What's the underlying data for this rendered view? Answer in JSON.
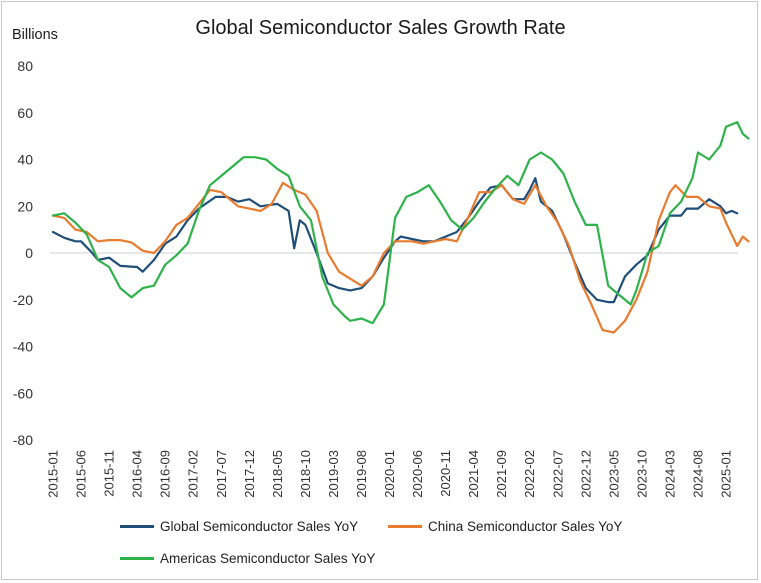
{
  "chart_data": {
    "type": "line",
    "title": "Global Semiconductor Sales Growth Rate",
    "ylabel": "Billions",
    "xlabel": "",
    "ylim": [
      -80,
      80
    ],
    "yticks": [
      80,
      60,
      40,
      20,
      0,
      -20,
      -40,
      -60,
      -80
    ],
    "x_start": "2015-01",
    "x_end": "2025-03",
    "x_tick_labels": [
      "2015-01",
      "2015-06",
      "2015-11",
      "2016-04",
      "2016-09",
      "2017-02",
      "2017-07",
      "2017-12",
      "2018-05",
      "2018-10",
      "2019-03",
      "2019-08",
      "2020-01",
      "2020-06",
      "2020-11",
      "2021-04",
      "2021-09",
      "2022-02",
      "2022-07",
      "2022-12",
      "2023-05",
      "2023-10",
      "2024-03",
      "2024-08",
      "2025-01"
    ],
    "grid": "horizontal zero line",
    "legend_position": "bottom",
    "series": [
      {
        "name": "Global Semiconductor Sales YoY",
        "color": "#1f4e79",
        "points": [
          [
            "2015-01",
            9
          ],
          [
            "2015-03",
            6.5
          ],
          [
            "2015-05",
            5
          ],
          [
            "2015-06",
            5
          ],
          [
            "2015-08",
            0
          ],
          [
            "2015-09",
            -3
          ],
          [
            "2015-11",
            -2
          ],
          [
            "2016-01",
            -5.5
          ],
          [
            "2016-04",
            -6
          ],
          [
            "2016-05",
            -8
          ],
          [
            "2016-07",
            -3
          ],
          [
            "2016-09",
            4
          ],
          [
            "2016-11",
            7
          ],
          [
            "2017-01",
            14
          ],
          [
            "2017-03",
            19
          ],
          [
            "2017-06",
            24
          ],
          [
            "2017-08",
            24
          ],
          [
            "2017-10",
            22
          ],
          [
            "2017-12",
            23
          ],
          [
            "2018-02",
            20
          ],
          [
            "2018-05",
            21
          ],
          [
            "2018-07",
            18
          ],
          [
            "2018-08",
            2
          ],
          [
            "2018-09",
            14
          ],
          [
            "2018-10",
            12
          ],
          [
            "2018-12",
            0
          ],
          [
            "2019-02",
            -13
          ],
          [
            "2019-04",
            -15
          ],
          [
            "2019-06",
            -16
          ],
          [
            "2019-08",
            -15
          ],
          [
            "2019-10",
            -10
          ],
          [
            "2019-12",
            -2
          ],
          [
            "2020-02",
            5
          ],
          [
            "2020-03",
            7
          ],
          [
            "2020-05",
            6
          ],
          [
            "2020-07",
            5
          ],
          [
            "2020-09",
            5
          ],
          [
            "2020-11",
            7
          ],
          [
            "2021-01",
            9
          ],
          [
            "2021-03",
            15
          ],
          [
            "2021-05",
            22
          ],
          [
            "2021-07",
            28
          ],
          [
            "2021-09",
            29
          ],
          [
            "2021-11",
            23
          ],
          [
            "2022-01",
            23
          ],
          [
            "2022-02",
            27
          ],
          [
            "2022-03",
            32
          ],
          [
            "2022-04",
            22
          ],
          [
            "2022-06",
            18
          ],
          [
            "2022-08",
            8
          ],
          [
            "2022-10",
            -4
          ],
          [
            "2022-12",
            -15
          ],
          [
            "2023-02",
            -20
          ],
          [
            "2023-04",
            -21
          ],
          [
            "2023-05",
            -21
          ],
          [
            "2023-07",
            -10
          ],
          [
            "2023-09",
            -5
          ],
          [
            "2023-11",
            -1
          ],
          [
            "2024-01",
            10
          ],
          [
            "2024-03",
            16
          ],
          [
            "2024-05",
            16
          ],
          [
            "2024-06",
            19
          ],
          [
            "2024-08",
            19
          ],
          [
            "2024-10",
            23
          ],
          [
            "2024-12",
            20
          ],
          [
            "2025-01",
            17
          ],
          [
            "2025-02",
            18
          ],
          [
            "2025-03",
            17
          ]
        ]
      },
      {
        "name": "China Semiconductor Sales YoY",
        "color": "#e97b2e",
        "points": [
          [
            "2015-01",
            16
          ],
          [
            "2015-03",
            15
          ],
          [
            "2015-05",
            10
          ],
          [
            "2015-07",
            9
          ],
          [
            "2015-09",
            5
          ],
          [
            "2015-11",
            5.5
          ],
          [
            "2016-01",
            5.5
          ],
          [
            "2016-03",
            4.5
          ],
          [
            "2016-05",
            1
          ],
          [
            "2016-07",
            0
          ],
          [
            "2016-09",
            5
          ],
          [
            "2016-11",
            12
          ],
          [
            "2017-01",
            15
          ],
          [
            "2017-03",
            21
          ],
          [
            "2017-05",
            27
          ],
          [
            "2017-07",
            26
          ],
          [
            "2017-08",
            24
          ],
          [
            "2017-10",
            20
          ],
          [
            "2017-12",
            19
          ],
          [
            "2018-02",
            18
          ],
          [
            "2018-04",
            21
          ],
          [
            "2018-06",
            30
          ],
          [
            "2018-08",
            27
          ],
          [
            "2018-10",
            25
          ],
          [
            "2018-12",
            18
          ],
          [
            "2019-02",
            0
          ],
          [
            "2019-04",
            -8
          ],
          [
            "2019-06",
            -11
          ],
          [
            "2019-08",
            -14
          ],
          [
            "2019-10",
            -10
          ],
          [
            "2019-12",
            0
          ],
          [
            "2020-02",
            5
          ],
          [
            "2020-03",
            5
          ],
          [
            "2020-05",
            5
          ],
          [
            "2020-07",
            4
          ],
          [
            "2020-09",
            5
          ],
          [
            "2020-11",
            6
          ],
          [
            "2021-01",
            5
          ],
          [
            "2021-03",
            15
          ],
          [
            "2021-05",
            26
          ],
          [
            "2021-07",
            26
          ],
          [
            "2021-09",
            29
          ],
          [
            "2021-11",
            23
          ],
          [
            "2022-01",
            21
          ],
          [
            "2022-03",
            29
          ],
          [
            "2022-05",
            20
          ],
          [
            "2022-07",
            13
          ],
          [
            "2022-09",
            3
          ],
          [
            "2022-11",
            -12
          ],
          [
            "2023-01",
            -22
          ],
          [
            "2023-03",
            -33
          ],
          [
            "2023-05",
            -34
          ],
          [
            "2023-07",
            -29
          ],
          [
            "2023-09",
            -20
          ],
          [
            "2023-11",
            -8
          ],
          [
            "2024-01",
            14
          ],
          [
            "2024-03",
            26
          ],
          [
            "2024-04",
            29
          ],
          [
            "2024-06",
            24
          ],
          [
            "2024-08",
            24
          ],
          [
            "2024-10",
            20
          ],
          [
            "2024-12",
            19
          ],
          [
            "2025-01",
            13
          ],
          [
            "2025-02",
            8
          ],
          [
            "2025-03",
            3
          ],
          [
            "2025-04",
            7
          ],
          [
            "2025-05",
            5
          ]
        ]
      },
      {
        "name": "Americas Semiconductor Sales YoY",
        "color": "#2db34a",
        "points": [
          [
            "2015-01",
            16
          ],
          [
            "2015-03",
            17
          ],
          [
            "2015-05",
            13
          ],
          [
            "2015-07",
            8
          ],
          [
            "2015-09",
            -3
          ],
          [
            "2015-11",
            -6
          ],
          [
            "2016-01",
            -15
          ],
          [
            "2016-03",
            -19
          ],
          [
            "2016-05",
            -15
          ],
          [
            "2016-07",
            -14
          ],
          [
            "2016-09",
            -5
          ],
          [
            "2016-11",
            -1
          ],
          [
            "2017-01",
            4
          ],
          [
            "2017-03",
            18
          ],
          [
            "2017-05",
            29
          ],
          [
            "2017-07",
            33
          ],
          [
            "2017-09",
            37
          ],
          [
            "2017-11",
            41
          ],
          [
            "2018-01",
            41
          ],
          [
            "2018-03",
            40
          ],
          [
            "2018-05",
            36
          ],
          [
            "2018-07",
            33
          ],
          [
            "2018-09",
            20
          ],
          [
            "2018-11",
            14
          ],
          [
            "2019-01",
            -10
          ],
          [
            "2019-03",
            -22
          ],
          [
            "2019-05",
            -27
          ],
          [
            "2019-06",
            -29
          ],
          [
            "2019-08",
            -28
          ],
          [
            "2019-10",
            -30
          ],
          [
            "2019-12",
            -22
          ],
          [
            "2020-02",
            15
          ],
          [
            "2020-04",
            24
          ],
          [
            "2020-06",
            26
          ],
          [
            "2020-08",
            29
          ],
          [
            "2020-10",
            22
          ],
          [
            "2020-12",
            14
          ],
          [
            "2021-02",
            10
          ],
          [
            "2021-04",
            15
          ],
          [
            "2021-06",
            22
          ],
          [
            "2021-08",
            28
          ],
          [
            "2021-10",
            33
          ],
          [
            "2021-12",
            29
          ],
          [
            "2022-02",
            40
          ],
          [
            "2022-04",
            43
          ],
          [
            "2022-06",
            40
          ],
          [
            "2022-08",
            34
          ],
          [
            "2022-10",
            22
          ],
          [
            "2022-12",
            12
          ],
          [
            "2023-02",
            12
          ],
          [
            "2023-04",
            -14
          ],
          [
            "2023-06",
            -18
          ],
          [
            "2023-08",
            -22
          ],
          [
            "2023-09",
            -16
          ],
          [
            "2023-11",
            0
          ],
          [
            "2024-01",
            3
          ],
          [
            "2024-03",
            17
          ],
          [
            "2024-05",
            22
          ],
          [
            "2024-07",
            32
          ],
          [
            "2024-08",
            43
          ],
          [
            "2024-10",
            40
          ],
          [
            "2024-12",
            46
          ],
          [
            "2025-01",
            54
          ],
          [
            "2025-03",
            56
          ],
          [
            "2025-04",
            51
          ],
          [
            "2025-05",
            49
          ]
        ]
      }
    ]
  }
}
